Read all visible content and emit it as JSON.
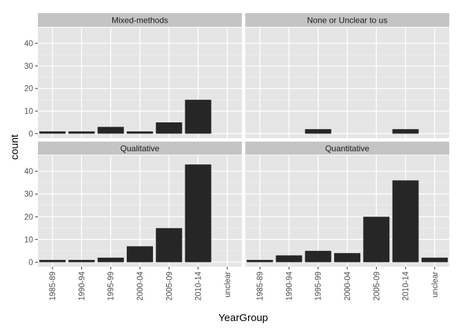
{
  "chart_data": {
    "type": "bar",
    "facet_layout": "2x2 grid, shared axes",
    "grid": true,
    "legend": "none",
    "xlabel": "YearGroup",
    "ylabel": "count",
    "ylim": [
      -2,
      47
    ],
    "yticks": [
      0,
      10,
      20,
      30,
      40
    ],
    "categories": [
      "1985-89",
      "1990-94",
      "1995-99",
      "2000-04",
      "2005-09",
      "2010-14",
      "unclear"
    ],
    "panels": [
      {
        "name": "Mixed-methods",
        "values": [
          1,
          1,
          3,
          1,
          5,
          15,
          0
        ]
      },
      {
        "name": "None or Unclear to us",
        "values": [
          0,
          0,
          2,
          0,
          0,
          2,
          0
        ]
      },
      {
        "name": "Qualitative",
        "values": [
          1,
          1,
          2,
          7,
          15,
          43,
          0
        ]
      },
      {
        "name": "Quantitative",
        "values": [
          1,
          3,
          5,
          4,
          20,
          36,
          2
        ]
      }
    ],
    "colors": {
      "bar": "#262626",
      "panel_background": "#e5e5e5",
      "gridline": "#ffffff",
      "strip_background": "#c4c4c4"
    }
  }
}
